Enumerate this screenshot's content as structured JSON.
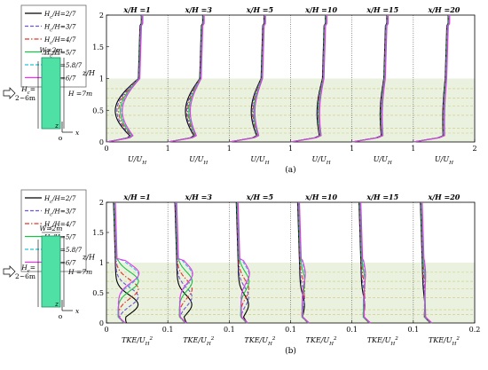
{
  "colors": {
    "shade": "#eaf2df",
    "dash": "#c9c97a",
    "building_fill": "#4fe0a6",
    "building_stroke": "#1a8a60"
  },
  "legend": {
    "entries": [
      "H_c/H=2/7",
      "H_c/H=3/7",
      "H_c/H=4/7",
      "H_c/H=5/7",
      "H_c/H=5.8/7",
      "H_c/H=6/7"
    ]
  },
  "schematic": {
    "width_label": "W=2m",
    "height_label": "H =7m",
    "hc_label": "H_c=",
    "hc_range": "2~6m",
    "origin_label": "o",
    "x_axis_label": "x",
    "z_axis_label": "z"
  },
  "panel_labels": [
    "(a)",
    "(b)"
  ],
  "chart_data": [
    {
      "type": "line",
      "quantity": "streamwise velocity",
      "stations": [
        "x/H =1",
        "x/H =3",
        "x/H =5",
        "x/H =10",
        "x/H =15",
        "x/H =20"
      ],
      "xlabel": "U/U_H",
      "ylabel": "z/H",
      "xlim": [
        0,
        2
      ],
      "ylim": [
        0,
        2
      ],
      "xticks": [
        "0",
        "1",
        "1",
        "1",
        "1",
        "1",
        "2"
      ],
      "yticks": [
        "0",
        "0.5",
        "1",
        "1.5",
        "2"
      ],
      "shaded_region_z": [
        0,
        1
      ],
      "dashed_levels_z": [
        0.14,
        0.22,
        0.42,
        0.57,
        0.69,
        0.84
      ],
      "series": [
        {
          "color": "#000000",
          "style": "solid"
        },
        {
          "color": "#6b56d8",
          "style": "dashed"
        },
        {
          "color": "#e0342c",
          "style": "dashdot"
        },
        {
          "color": "#19c244",
          "style": "solid"
        },
        {
          "color": "#27c4d4",
          "style": "dashed"
        },
        {
          "color": "#ee33ee",
          "style": "solid"
        }
      ]
    },
    {
      "type": "line",
      "quantity": "turbulent kinetic energy",
      "stations": [
        "x/H =1",
        "x/H =3",
        "x/H =5",
        "x/H =10",
        "x/H =15",
        "x/H =20"
      ],
      "xlabel": "TKE/U_H^2",
      "ylabel": "z/H",
      "xlim": [
        0,
        0.2
      ],
      "ylim": [
        0,
        2
      ],
      "xticks": [
        "0",
        "0.1",
        "0.1",
        "0.1",
        "0.1",
        "0.1",
        "0.2"
      ],
      "yticks": [
        "0",
        "0.5",
        "1",
        "1.5",
        "2"
      ],
      "shaded_region_z": [
        0,
        1
      ],
      "dashed_levels_z": [
        0.14,
        0.22,
        0.42,
        0.57,
        0.69,
        0.84
      ],
      "series": [
        {
          "color": "#000000",
          "style": "solid"
        },
        {
          "color": "#6b56d8",
          "style": "dashed"
        },
        {
          "color": "#e0342c",
          "style": "dashdot"
        },
        {
          "color": "#19c244",
          "style": "solid"
        },
        {
          "color": "#27c4d4",
          "style": "dashed"
        },
        {
          "color": "#ee33ee",
          "style": "solid"
        }
      ]
    }
  ]
}
